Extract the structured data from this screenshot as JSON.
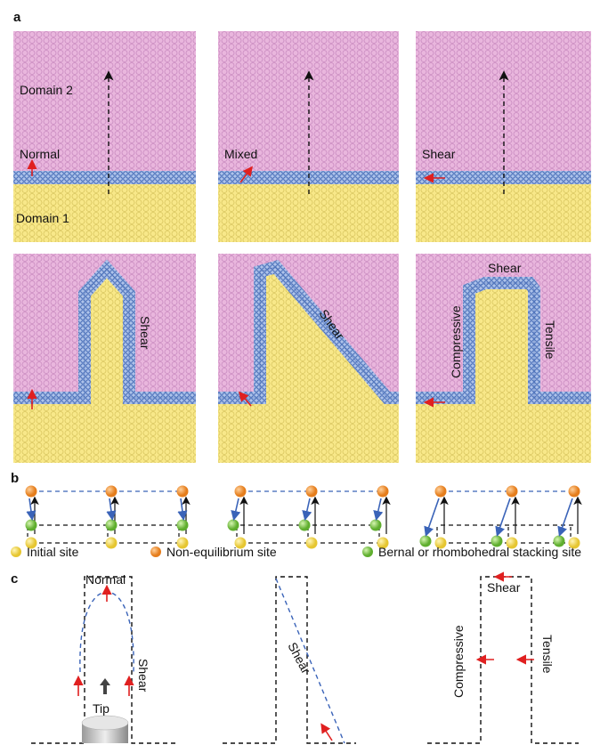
{
  "panel_a": {
    "label": "a",
    "top": [
      {
        "domain2": "Domain 2",
        "mode": "Normal",
        "domain1": "Domain 1"
      },
      {
        "mode": "Mixed"
      },
      {
        "mode": "Shear"
      }
    ],
    "bottom": [
      {
        "boundary": "Shear"
      },
      {
        "boundary": "Shear"
      },
      {
        "top": "Shear",
        "left": "Compressive",
        "right": "Tensile"
      }
    ]
  },
  "panel_b": {
    "label": "b",
    "legend": [
      "Initial site",
      "Non-equilibrium site",
      "Bernal or rhombohedral stacking site"
    ]
  },
  "panel_c": {
    "label": "c",
    "diagrams": [
      {
        "top": "Normal",
        "side": "Shear",
        "tip": "Tip"
      },
      {
        "side": "Shear"
      },
      {
        "top": "Shear",
        "left": "Compressive",
        "right": "Tensile"
      }
    ]
  }
}
